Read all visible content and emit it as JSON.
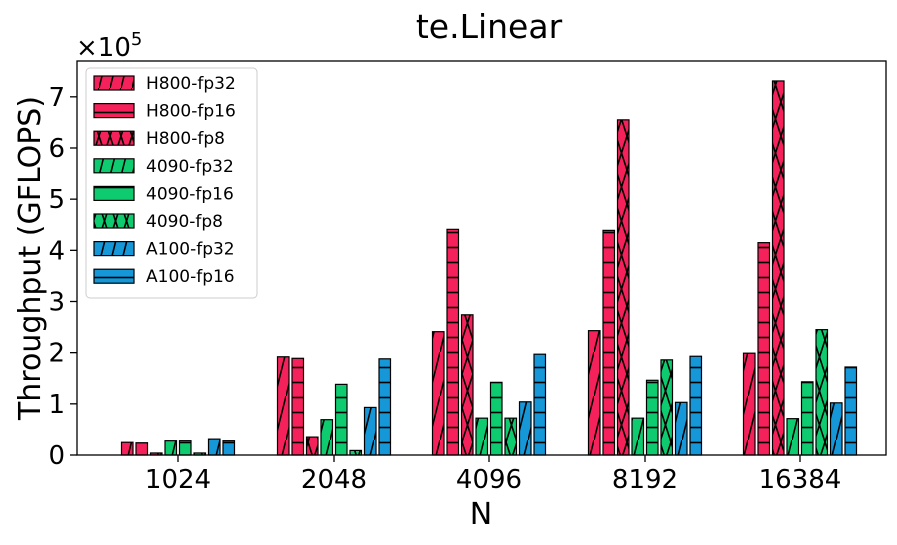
{
  "chart_data": {
    "type": "bar",
    "title": "te.Linear",
    "xlabel": "N",
    "ylabel": "Throughput (GFLOPS)",
    "y_multiplier": "×10",
    "y_multiplier_exp": "5",
    "ylim": [
      0,
      7.7
    ],
    "yticks": [
      0,
      1,
      2,
      3,
      4,
      5,
      6,
      7
    ],
    "categories": [
      "1024",
      "2048",
      "4096",
      "8192",
      "16384"
    ],
    "legend_position": "upper-left",
    "grid": false,
    "series": [
      {
        "name": "H800-fp32",
        "color": "#f5215a",
        "hatch": "slash",
        "values": [
          0.25,
          1.92,
          2.41,
          2.43,
          1.99
        ]
      },
      {
        "name": "H800-fp16",
        "color": "#f5215a",
        "hatch": "hline",
        "values": [
          0.24,
          1.89,
          4.41,
          4.39,
          4.15
        ]
      },
      {
        "name": "H800-fp8",
        "color": "#f5215a",
        "hatch": "cross",
        "values": [
          0.04,
          0.35,
          2.74,
          6.55,
          7.31
        ]
      },
      {
        "name": "4090-fp32",
        "color": "#0fcb70",
        "hatch": "slash",
        "values": [
          0.28,
          0.69,
          0.72,
          0.72,
          0.71
        ]
      },
      {
        "name": "4090-fp16",
        "color": "#0fcb70",
        "hatch": "hline",
        "values": [
          0.28,
          1.38,
          1.42,
          1.46,
          1.43
        ]
      },
      {
        "name": "4090-fp8",
        "color": "#0fcb70",
        "hatch": "cross",
        "values": [
          0.04,
          0.09,
          0.72,
          1.86,
          2.45
        ]
      },
      {
        "name": "A100-fp32",
        "color": "#1597d8",
        "hatch": "slash",
        "values": [
          0.31,
          0.93,
          1.04,
          1.03,
          1.02
        ]
      },
      {
        "name": "A100-fp16",
        "color": "#1597d8",
        "hatch": "hline",
        "values": [
          0.28,
          1.88,
          1.97,
          1.93,
          1.72
        ]
      }
    ]
  }
}
